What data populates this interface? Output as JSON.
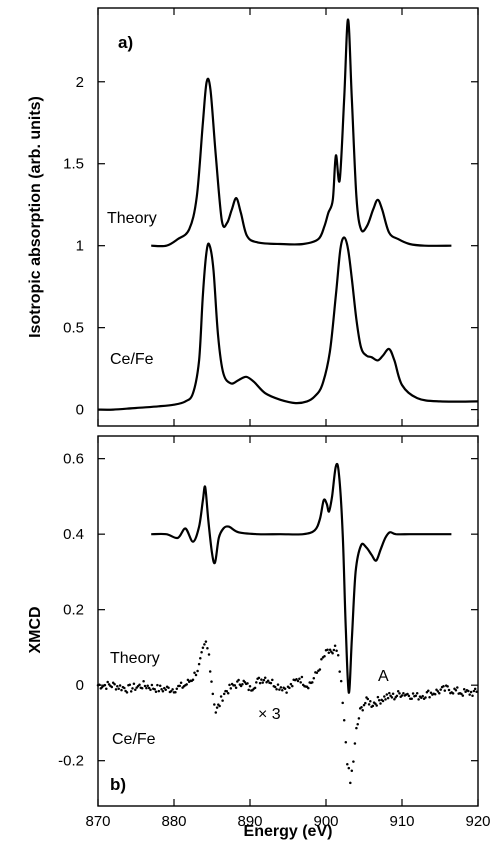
{
  "chart_data": [
    {
      "panel": "a)",
      "type": "line",
      "xlabel": "Energy  (eV)",
      "ylabel": "Isotropic  absorption  (arb.  units)",
      "xlim": [
        870,
        920
      ],
      "ylim": [
        -0.1,
        2.45
      ],
      "xticks": [
        870,
        880,
        890,
        900,
        910,
        920
      ],
      "yticks": [
        0,
        0.5,
        1,
        1.5,
        2
      ],
      "ytick_labels": [
        "0",
        "0.5",
        "1",
        "1.5",
        "2"
      ],
      "grid": false,
      "series": [
        {
          "name": "Theory",
          "x": [
            877,
            879,
            880.5,
            882,
            883,
            883.8,
            884.3,
            884.8,
            885.5,
            886.3,
            887,
            887.6,
            888.2,
            888.8,
            889.6,
            891,
            894,
            897,
            899,
            899.8,
            900.3,
            900.9,
            901.3,
            901.8,
            902.4,
            902.9,
            903.4,
            904,
            904.6,
            905.4,
            906.2,
            906.8,
            907.4,
            908.3,
            909.5,
            911,
            913,
            916.5
          ],
          "y": [
            1.0,
            1.0,
            1.04,
            1.1,
            1.3,
            1.75,
            2.0,
            1.95,
            1.55,
            1.15,
            1.14,
            1.22,
            1.29,
            1.2,
            1.06,
            1.02,
            1.01,
            1.01,
            1.04,
            1.12,
            1.2,
            1.28,
            1.55,
            1.4,
            1.9,
            2.38,
            1.9,
            1.3,
            1.1,
            1.12,
            1.22,
            1.28,
            1.22,
            1.08,
            1.04,
            1.01,
            1.0,
            1.0
          ]
        },
        {
          "name": "Ce/Fe",
          "x": [
            870,
            872,
            875,
            878,
            880,
            881.5,
            882.5,
            883.3,
            883.8,
            884.3,
            884.7,
            885.2,
            885.8,
            886.5,
            887.5,
            888.5,
            889.5,
            890.5,
            892,
            894,
            896,
            897.5,
            898.5,
            899.5,
            900.5,
            901.3,
            901.9,
            902.4,
            902.9,
            903.4,
            904,
            904.6,
            905.3,
            906,
            906.8,
            907.5,
            908.3,
            909,
            910,
            912,
            915,
            920
          ],
          "y": [
            0.0,
            0.0,
            0.01,
            0.02,
            0.03,
            0.05,
            0.1,
            0.3,
            0.7,
            0.97,
            1.0,
            0.85,
            0.45,
            0.22,
            0.16,
            0.18,
            0.2,
            0.17,
            0.1,
            0.06,
            0.04,
            0.05,
            0.08,
            0.15,
            0.35,
            0.7,
            0.98,
            1.05,
            0.98,
            0.8,
            0.55,
            0.38,
            0.33,
            0.32,
            0.3,
            0.33,
            0.37,
            0.3,
            0.15,
            0.07,
            0.05,
            0.05
          ]
        }
      ],
      "annotations": [
        "Theory",
        "Ce/Fe"
      ]
    },
    {
      "panel": "b)",
      "type": "line",
      "xlabel": "Energy  (eV)",
      "ylabel": "XMCD",
      "xlim": [
        870,
        920
      ],
      "ylim": [
        -0.32,
        0.66
      ],
      "xticks": [
        870,
        880,
        890,
        900,
        910,
        920
      ],
      "xtick_labels": [
        "870",
        "880",
        "890",
        "900",
        "910",
        "920"
      ],
      "yticks": [
        -0.2,
        0,
        0.2,
        0.4,
        0.6
      ],
      "ytick_labels": [
        "-0.2",
        "0",
        "0.2",
        "0.4",
        "0.6"
      ],
      "grid": false,
      "series": [
        {
          "name": "Theory",
          "style": "line",
          "x": [
            877,
            879,
            880.5,
            881.5,
            882.5,
            883.3,
            883.8,
            884.1,
            884.5,
            885,
            885.4,
            885.9,
            886.5,
            887.2,
            888.5,
            891,
            894,
            897,
            898.5,
            899.2,
            899.7,
            900.1,
            900.4,
            900.8,
            901.3,
            901.7,
            902.2,
            902.6,
            903,
            903.4,
            903.9,
            904.6,
            905.3,
            906,
            906.6,
            907.2,
            907.8,
            908.4,
            909.2,
            911,
            913,
            916.5
          ],
          "y": [
            0.4,
            0.4,
            0.39,
            0.415,
            0.38,
            0.42,
            0.49,
            0.525,
            0.44,
            0.35,
            0.325,
            0.39,
            0.415,
            0.42,
            0.405,
            0.4,
            0.4,
            0.4,
            0.41,
            0.44,
            0.49,
            0.48,
            0.46,
            0.5,
            0.58,
            0.56,
            0.4,
            0.15,
            -0.02,
            0.12,
            0.3,
            0.37,
            0.365,
            0.345,
            0.33,
            0.36,
            0.39,
            0.405,
            0.4,
            0.4,
            0.4,
            0.4
          ]
        },
        {
          "name": "Ce/Fe",
          "style": "dots",
          "x": [
            870,
            872,
            874,
            876,
            878,
            880,
            881.5,
            882.5,
            883.3,
            883.8,
            884.2,
            884.6,
            885.1,
            885.5,
            886,
            886.6,
            887.3,
            888,
            889,
            890,
            891,
            892,
            893.5,
            895,
            896.5,
            897.5,
            898.2,
            899,
            899.6,
            900.2,
            900.7,
            901.2,
            901.6,
            902,
            902.4,
            902.8,
            903.2,
            903.6,
            904,
            904.5,
            905,
            905.5,
            906,
            907,
            908,
            909,
            910,
            912,
            914,
            916,
            918,
            920
          ],
          "y": [
            0.0,
            0.0,
            -0.01,
            0.0,
            -0.01,
            -0.01,
            0.0,
            0.02,
            0.05,
            0.09,
            0.11,
            0.08,
            -0.02,
            -0.07,
            -0.05,
            -0.02,
            -0.01,
            0.0,
            0.01,
            -0.01,
            0.01,
            0.02,
            0.0,
            -0.01,
            0.02,
            0.0,
            0.01,
            0.04,
            0.07,
            0.09,
            0.08,
            0.1,
            0.07,
            0.0,
            -0.1,
            -0.2,
            -0.26,
            -0.2,
            -0.12,
            -0.07,
            -0.05,
            -0.04,
            -0.05,
            -0.04,
            -0.03,
            -0.03,
            -0.02,
            -0.03,
            -0.02,
            -0.01,
            -0.02,
            -0.02
          ]
        }
      ],
      "annotations": [
        "Theory",
        "Ce/Fe",
        "× 3",
        "A"
      ]
    }
  ],
  "labels": {
    "panel_a": "a)",
    "panel_b": "b)",
    "theory_a": "Theory",
    "cefe_a": "Ce/Fe",
    "theory_b": "Theory",
    "cefe_b": "Ce/Fe",
    "times3": "× 3",
    "peak_A": "A",
    "ylabel_top": "Isotropic  absorption  (arb.  units)",
    "ylabel_bottom": "XMCD",
    "xlabel": "Energy  (eV)"
  }
}
